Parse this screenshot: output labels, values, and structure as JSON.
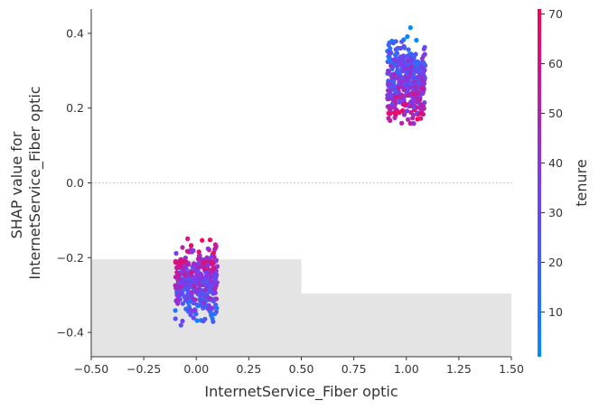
{
  "chart_data": {
    "type": "scatter",
    "xlabel": "InternetService_Fiber optic",
    "ylabel": [
      "SHAP value for",
      "InternetService_Fiber optic"
    ],
    "xlim": [
      -0.5,
      1.5
    ],
    "ylim": [
      -0.465,
      0.465
    ],
    "x_ticks": [
      -0.5,
      -0.25,
      0.0,
      0.25,
      0.5,
      0.75,
      1.0,
      1.25,
      1.5
    ],
    "x_tick_labels": [
      "−0.50",
      "−0.25",
      "0.00",
      "0.25",
      "0.50",
      "0.75",
      "1.00",
      "1.25",
      "1.50"
    ],
    "y_ticks": [
      -0.4,
      -0.2,
      0.0,
      0.2,
      0.4
    ],
    "y_tick_labels": [
      "−0.4",
      "−0.2",
      "0.0",
      "0.2",
      "0.4"
    ],
    "zero_line": true,
    "grid": false,
    "background_histogram": {
      "bins": [
        {
          "x0": -0.5,
          "x1": 0.5
        },
        {
          "x0": 0.5,
          "x1": 1.5
        }
      ],
      "relative_heights": [
        0.28,
        0.182
      ],
      "color": "#e4e4e4"
    },
    "clusters": [
      {
        "x_center": 0.0,
        "x_jitter": 0.1,
        "y_min": -0.42,
        "y_max": -0.13,
        "y_center": -0.265
      },
      {
        "x_center": 1.0,
        "x_jitter": 0.09,
        "y_min": 0.115,
        "y_max": 0.425,
        "y_center": 0.27
      }
    ],
    "colorbar": {
      "label": "tenure",
      "min": 1,
      "max": 71,
      "ticks": [
        10,
        20,
        30,
        40,
        50,
        60,
        70
      ],
      "colors": [
        "#008bfb",
        "#7b3cef",
        "#ff0052"
      ]
    }
  }
}
